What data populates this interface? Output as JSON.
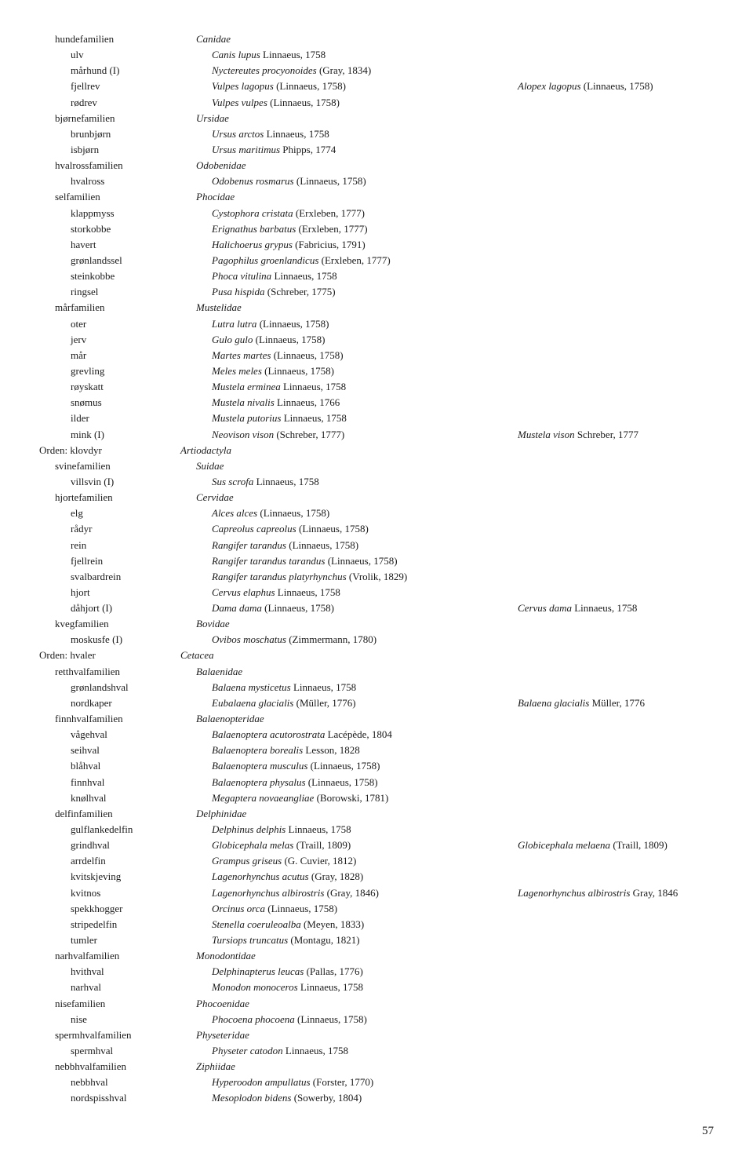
{
  "page_number": "57",
  "rows": [
    {
      "level": 2,
      "nor": "hundefamilien",
      "sci": "Canidae",
      "auth": "",
      "syn_sci": "",
      "syn_auth": ""
    },
    {
      "level": 3,
      "nor": "ulv",
      "sci": "Canis lupus",
      "auth": " Linnaeus, 1758",
      "syn_sci": "",
      "syn_auth": ""
    },
    {
      "level": 3,
      "nor": "mårhund (I)",
      "sci": "Nyctereutes procyonoides",
      "auth": " (Gray, 1834)",
      "syn_sci": "",
      "syn_auth": ""
    },
    {
      "level": 3,
      "nor": "fjellrev",
      "sci": "Vulpes lagopus",
      "auth": " (Linnaeus, 1758)",
      "syn_sci": "Alopex lagopus",
      "syn_auth": " (Linnaeus, 1758)"
    },
    {
      "level": 3,
      "nor": "rødrev",
      "sci": "Vulpes vulpes",
      "auth": " (Linnaeus, 1758)",
      "syn_sci": "",
      "syn_auth": ""
    },
    {
      "level": 2,
      "nor": "bjørnefamilien",
      "sci": "Ursidae",
      "auth": "",
      "syn_sci": "",
      "syn_auth": ""
    },
    {
      "level": 3,
      "nor": "brunbjørn",
      "sci": "Ursus arctos",
      "auth": " Linnaeus, 1758",
      "syn_sci": "",
      "syn_auth": ""
    },
    {
      "level": 3,
      "nor": "isbjørn",
      "sci": "Ursus maritimus",
      "auth": " Phipps, 1774",
      "syn_sci": "",
      "syn_auth": ""
    },
    {
      "level": 2,
      "nor": "hvalrossfamilien",
      "sci": "Odobenidae",
      "auth": "",
      "syn_sci": "",
      "syn_auth": ""
    },
    {
      "level": 3,
      "nor": "hvalross",
      "sci": "Odobenus rosmarus",
      "auth": " (Linnaeus, 1758)",
      "syn_sci": "",
      "syn_auth": ""
    },
    {
      "level": 2,
      "nor": "selfamilien",
      "sci": "Phocidae",
      "auth": "",
      "syn_sci": "",
      "syn_auth": ""
    },
    {
      "level": 3,
      "nor": "klappmyss",
      "sci": "Cystophora cristata",
      "auth": " (Erxleben, 1777)",
      "syn_sci": "",
      "syn_auth": ""
    },
    {
      "level": 3,
      "nor": "storkobbe",
      "sci": "Erignathus barbatus",
      "auth": " (Erxleben, 1777)",
      "syn_sci": "",
      "syn_auth": ""
    },
    {
      "level": 3,
      "nor": "havert",
      "sci": "Halichoerus grypus",
      "auth": " (Fabricius, 1791)",
      "syn_sci": "",
      "syn_auth": ""
    },
    {
      "level": 3,
      "nor": "grønlandssel",
      "sci": "Pagophilus groenlandicus",
      "auth": " (Erxleben, 1777)",
      "syn_sci": "",
      "syn_auth": ""
    },
    {
      "level": 3,
      "nor": "steinkobbe",
      "sci": "Phoca vitulina",
      "auth": " Linnaeus, 1758",
      "syn_sci": "",
      "syn_auth": ""
    },
    {
      "level": 3,
      "nor": "ringsel",
      "sci": "Pusa hispida",
      "auth": " (Schreber, 1775)",
      "syn_sci": "",
      "syn_auth": ""
    },
    {
      "level": 2,
      "nor": "mårfamilien",
      "sci": "Mustelidae",
      "auth": "",
      "syn_sci": "",
      "syn_auth": ""
    },
    {
      "level": 3,
      "nor": "oter",
      "sci": "Lutra lutra",
      "auth": " (Linnaeus, 1758)",
      "syn_sci": "",
      "syn_auth": ""
    },
    {
      "level": 3,
      "nor": "jerv",
      "sci": "Gulo gulo",
      "auth": " (Linnaeus, 1758)",
      "syn_sci": "",
      "syn_auth": ""
    },
    {
      "level": 3,
      "nor": "mår",
      "sci": "Martes martes",
      "auth": " (Linnaeus, 1758)",
      "syn_sci": "",
      "syn_auth": ""
    },
    {
      "level": 3,
      "nor": "grevling",
      "sci": "Meles meles",
      "auth": " (Linnaeus, 1758)",
      "syn_sci": "",
      "syn_auth": ""
    },
    {
      "level": 3,
      "nor": "røyskatt",
      "sci": "Mustela erminea",
      "auth": " Linnaeus, 1758",
      "syn_sci": "",
      "syn_auth": ""
    },
    {
      "level": 3,
      "nor": "snømus",
      "sci": "Mustela nivalis",
      "auth": " Linnaeus, 1766",
      "syn_sci": "",
      "syn_auth": ""
    },
    {
      "level": 3,
      "nor": "ilder",
      "sci": "Mustela putorius",
      "auth": " Linnaeus, 1758",
      "syn_sci": "",
      "syn_auth": ""
    },
    {
      "level": 3,
      "nor": "mink (I)",
      "sci": "Neovison vison",
      "auth": " (Schreber, 1777)",
      "syn_sci": "Mustela vison",
      "syn_auth": " Schreber, 1777"
    },
    {
      "level": 1,
      "nor": "Orden: klovdyr",
      "sci": "Artiodactyla",
      "auth": "",
      "syn_sci": "",
      "syn_auth": ""
    },
    {
      "level": 2,
      "nor": "svinefamilien",
      "sci": "Suidae",
      "auth": "",
      "syn_sci": "",
      "syn_auth": ""
    },
    {
      "level": 3,
      "nor": "villsvin (I)",
      "sci": "Sus scrofa",
      "auth": " Linnaeus, 1758",
      "syn_sci": "",
      "syn_auth": ""
    },
    {
      "level": 2,
      "nor": "hjortefamilien",
      "sci": "Cervidae",
      "auth": "",
      "syn_sci": "",
      "syn_auth": ""
    },
    {
      "level": 3,
      "nor": "elg",
      "sci": "Alces alces",
      "auth": " (Linnaeus, 1758)",
      "syn_sci": "",
      "syn_auth": ""
    },
    {
      "level": 3,
      "nor": "rådyr",
      "sci": "Capreolus capreolus",
      "auth": " (Linnaeus, 1758)",
      "syn_sci": "",
      "syn_auth": ""
    },
    {
      "level": 3,
      "nor": "rein",
      "sci": "Rangifer tarandus",
      "auth": " (Linnaeus, 1758)",
      "syn_sci": "",
      "syn_auth": ""
    },
    {
      "level": 3,
      "nor": "fjellrein",
      "sci": "Rangifer tarandus tarandus",
      "auth": " (Linnaeus, 1758)",
      "syn_sci": "",
      "syn_auth": ""
    },
    {
      "level": 3,
      "nor": "svalbardrein",
      "sci": "Rangifer tarandus platyrhynchus",
      "auth": " (Vrolik, 1829)",
      "syn_sci": "",
      "syn_auth": ""
    },
    {
      "level": 3,
      "nor": "hjort",
      "sci": "Cervus elaphus",
      "auth": " Linnaeus, 1758",
      "syn_sci": "",
      "syn_auth": ""
    },
    {
      "level": 3,
      "nor": "dåhjort (I)",
      "sci": "Dama dama",
      "auth": " (Linnaeus, 1758)",
      "syn_sci": "Cervus dama",
      "syn_auth": " Linnaeus, 1758"
    },
    {
      "level": 2,
      "nor": "kvegfamilien",
      "sci": "Bovidae",
      "auth": "",
      "syn_sci": "",
      "syn_auth": ""
    },
    {
      "level": 3,
      "nor": "moskusfe (I)",
      "sci": "Ovibos moschatus",
      "auth": " (Zimmermann, 1780)",
      "syn_sci": "",
      "syn_auth": ""
    },
    {
      "level": 1,
      "nor": "Orden: hvaler",
      "sci": "Cetacea",
      "auth": "",
      "syn_sci": "",
      "syn_auth": ""
    },
    {
      "level": 2,
      "nor": "retthvalfamilien",
      "sci": "Balaenidae",
      "auth": "",
      "syn_sci": "",
      "syn_auth": ""
    },
    {
      "level": 3,
      "nor": "grønlandshval",
      "sci": "Balaena mysticetus",
      "auth": " Linnaeus, 1758",
      "syn_sci": "",
      "syn_auth": ""
    },
    {
      "level": 3,
      "nor": "nordkaper",
      "sci": "Eubalaena glacialis",
      "auth": " (Müller, 1776)",
      "syn_sci": "Balaena glacialis",
      "syn_auth": " Müller, 1776"
    },
    {
      "level": 2,
      "nor": "finnhvalfamilien",
      "sci": "Balaenopteridae",
      "auth": "",
      "syn_sci": "",
      "syn_auth": ""
    },
    {
      "level": 3,
      "nor": "vågehval",
      "sci": "Balaenoptera acutorostrata",
      "auth": " Lacépède, 1804",
      "syn_sci": "",
      "syn_auth": ""
    },
    {
      "level": 3,
      "nor": "seihval",
      "sci": "Balaenoptera borealis",
      "auth": " Lesson, 1828",
      "syn_sci": "",
      "syn_auth": ""
    },
    {
      "level": 3,
      "nor": "blåhval",
      "sci": "Balaenoptera musculus",
      "auth": " (Linnaeus, 1758)",
      "syn_sci": "",
      "syn_auth": ""
    },
    {
      "level": 3,
      "nor": "finnhval",
      "sci": "Balaenoptera physalus",
      "auth": " (Linnaeus, 1758)",
      "syn_sci": "",
      "syn_auth": ""
    },
    {
      "level": 3,
      "nor": "knølhval",
      "sci": "Megaptera novaeangliae",
      "auth": " (Borowski, 1781)",
      "syn_sci": "",
      "syn_auth": ""
    },
    {
      "level": 2,
      "nor": "delfinfamilien",
      "sci": "Delphinidae",
      "auth": "",
      "syn_sci": "",
      "syn_auth": ""
    },
    {
      "level": 3,
      "nor": "gulflankedelfin",
      "sci": "Delphinus delphis",
      "auth": " Linnaeus, 1758",
      "syn_sci": "",
      "syn_auth": ""
    },
    {
      "level": 3,
      "nor": "grindhval",
      "sci": "Globicephala melas",
      "auth": " (Traill, 1809)",
      "syn_sci": "Globicephala melaena",
      "syn_auth": " (Traill, 1809)"
    },
    {
      "level": 3,
      "nor": "arrdelfin",
      "sci": "Grampus griseus",
      "auth": " (G. Cuvier, 1812)",
      "syn_sci": "",
      "syn_auth": ""
    },
    {
      "level": 3,
      "nor": "kvitskjeving",
      "sci": "Lagenorhynchus acutus",
      "auth": " (Gray, 1828)",
      "syn_sci": "",
      "syn_auth": ""
    },
    {
      "level": 3,
      "nor": "kvitnos",
      "sci": "Lagenorhynchus albirostris",
      "auth": " (Gray, 1846)",
      "syn_sci": "Lagenorhynchus albirostris",
      "syn_auth": " Gray, 1846"
    },
    {
      "level": 3,
      "nor": "spekkhogger",
      "sci": "Orcinus orca",
      "auth": " (Linnaeus, 1758)",
      "syn_sci": "",
      "syn_auth": ""
    },
    {
      "level": 3,
      "nor": "stripedelfin",
      "sci": "Stenella coeruleoalba",
      "auth": " (Meyen, 1833)",
      "syn_sci": "",
      "syn_auth": ""
    },
    {
      "level": 3,
      "nor": "tumler",
      "sci": "Tursiops truncatus",
      "auth": " (Montagu, 1821)",
      "syn_sci": "",
      "syn_auth": ""
    },
    {
      "level": 2,
      "nor": "narhvalfamilien",
      "sci": "Monodontidae",
      "auth": "",
      "syn_sci": "",
      "syn_auth": ""
    },
    {
      "level": 3,
      "nor": "hvithval",
      "sci": "Delphinapterus leucas",
      "auth": " (Pallas, 1776)",
      "syn_sci": "",
      "syn_auth": ""
    },
    {
      "level": 3,
      "nor": "narhval",
      "sci": "Monodon monoceros",
      "auth": " Linnaeus, 1758",
      "syn_sci": "",
      "syn_auth": ""
    },
    {
      "level": 2,
      "nor": "nisefamilien",
      "sci": "Phocoenidae",
      "auth": "",
      "syn_sci": "",
      "syn_auth": ""
    },
    {
      "level": 3,
      "nor": "nise",
      "sci": "Phocoena phocoena",
      "auth": " (Linnaeus, 1758)",
      "syn_sci": "",
      "syn_auth": ""
    },
    {
      "level": 2,
      "nor": "spermhvalfamilien",
      "sci": "Physeteridae",
      "auth": "",
      "syn_sci": "",
      "syn_auth": ""
    },
    {
      "level": 3,
      "nor": "spermhval",
      "sci": "Physeter catodon",
      "auth": " Linnaeus, 1758",
      "syn_sci": "",
      "syn_auth": ""
    },
    {
      "level": 2,
      "nor": "nebbhvalfamilien",
      "sci": "Ziphiidae",
      "auth": "",
      "syn_sci": "",
      "syn_auth": ""
    },
    {
      "level": 3,
      "nor": "nebbhval",
      "sci": "Hyperoodon ampullatus",
      "auth": " (Forster, 1770)",
      "syn_sci": "",
      "syn_auth": ""
    },
    {
      "level": 3,
      "nor": "nordspisshval",
      "sci": "Mesoplodon bidens",
      "auth": " (Sowerby, 1804)",
      "syn_sci": "",
      "syn_auth": ""
    }
  ]
}
